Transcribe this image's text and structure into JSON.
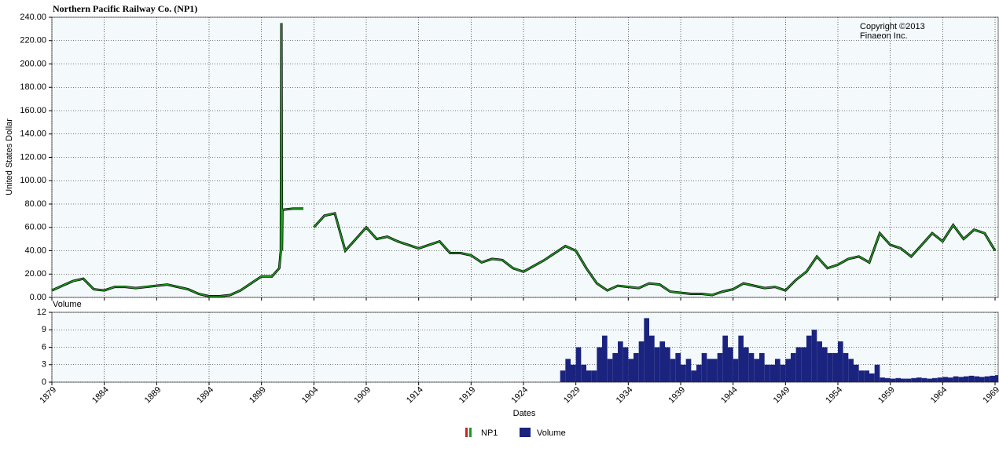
{
  "chart_data": [
    {
      "type": "line",
      "title": "Northern Pacific Railway Co. (NP1)",
      "y_label": "United States Dollar",
      "annotation": [
        "Copyright ©2013",
        "Finaeon Inc."
      ],
      "grid": true,
      "xlim": [
        1879,
        1969.3
      ],
      "xticks": [
        1879,
        1884,
        1889,
        1894,
        1899,
        1904,
        1909,
        1914,
        1919,
        1924,
        1929,
        1934,
        1939,
        1944,
        1949,
        1954,
        1959,
        1964,
        1969
      ],
      "ylim": [
        0,
        240
      ],
      "yticks": [
        {
          "value": 0,
          "label": "0.00"
        },
        {
          "value": 20,
          "label": "20.00"
        },
        {
          "value": 40,
          "label": "40.00"
        },
        {
          "value": 60,
          "label": "60.00"
        },
        {
          "value": 80,
          "label": "80.00"
        },
        {
          "value": 100,
          "label": "100.00"
        },
        {
          "value": 120,
          "label": "120.00"
        },
        {
          "value": 140,
          "label": "140.00"
        },
        {
          "value": 160,
          "label": "160.00"
        },
        {
          "value": 180,
          "label": "180.00"
        },
        {
          "value": 200,
          "label": "200.00"
        },
        {
          "value": 220,
          "label": "220.00"
        },
        {
          "value": 240,
          "label": "240.00"
        }
      ],
      "series": [
        {
          "name": "NP1",
          "color": "#1f9a1f",
          "x": [
            1879,
            1880,
            1881,
            1882,
            1883,
            1884,
            1885,
            1886,
            1887,
            1888,
            1889,
            1890,
            1891,
            1892,
            1893,
            1894,
            1895,
            1896,
            1897,
            1898,
            1899,
            1900,
            1900.7,
            1900.85,
            1900.9,
            1900.95,
            1901,
            1902,
            1903,
            1903.5,
            1904,
            1905,
            1906,
            1907,
            1908,
            1909,
            1910,
            1911,
            1912,
            1913,
            1914,
            1915,
            1916,
            1917,
            1918,
            1919,
            1920,
            1921,
            1922,
            1923,
            1924,
            1925,
            1926,
            1927,
            1928,
            1929,
            1930,
            1931,
            1932,
            1933,
            1934,
            1935,
            1936,
            1937,
            1938,
            1939,
            1940,
            1941,
            1942,
            1943,
            1944,
            1945,
            1946,
            1947,
            1948,
            1949,
            1950,
            1951,
            1952,
            1953,
            1954,
            1955,
            1956,
            1957,
            1958,
            1959,
            1960,
            1961,
            1962,
            1963,
            1964,
            1965,
            1966,
            1967,
            1968,
            1969
          ],
          "values": [
            6,
            10,
            14,
            16,
            7,
            6,
            9,
            9,
            8,
            9,
            10,
            11,
            9,
            7,
            3,
            1,
            1,
            2,
            6,
            12,
            18,
            18,
            25,
            40,
            235,
            40,
            75,
            76,
            76,
            null,
            60,
            70,
            72,
            40,
            50,
            60,
            50,
            52,
            48,
            45,
            42,
            45,
            48,
            38,
            38,
            36,
            30,
            33,
            32,
            25,
            22,
            27,
            32,
            38,
            44,
            40,
            25,
            12,
            6,
            10,
            9,
            8,
            12,
            11,
            5,
            4,
            3,
            3,
            2,
            5,
            7,
            12,
            10,
            8,
            9,
            6,
            15,
            22,
            35,
            25,
            28,
            33,
            35,
            30,
            55,
            45,
            42,
            35,
            45,
            55,
            48,
            62,
            50,
            58,
            55,
            40
          ]
        }
      ]
    },
    {
      "type": "bar",
      "title": "Volume",
      "x_label": "Dates",
      "grid": true,
      "xlim": [
        1879,
        1969.3
      ],
      "xticks": [
        1879,
        1884,
        1889,
        1894,
        1899,
        1904,
        1909,
        1914,
        1919,
        1924,
        1929,
        1934,
        1939,
        1944,
        1949,
        1954,
        1959,
        1964,
        1969
      ],
      "ylim": [
        0,
        12
      ],
      "yticks": [
        0,
        3,
        6,
        9,
        12
      ],
      "series": [
        {
          "name": "Volume",
          "color": "#1a237e",
          "x": [
            1927.5,
            1928,
            1928.5,
            1929,
            1929.5,
            1930,
            1930.5,
            1931,
            1931.5,
            1932,
            1932.5,
            1933,
            1933.5,
            1934,
            1934.5,
            1935,
            1935.5,
            1936,
            1936.5,
            1937,
            1937.5,
            1938,
            1938.5,
            1939,
            1939.5,
            1940,
            1940.5,
            1941,
            1941.5,
            1942,
            1942.5,
            1943,
            1943.5,
            1944,
            1944.5,
            1945,
            1945.5,
            1946,
            1946.5,
            1947,
            1947.5,
            1948,
            1948.5,
            1949,
            1949.5,
            1950,
            1950.5,
            1951,
            1951.5,
            1952,
            1952.5,
            1953,
            1953.5,
            1954,
            1954.5,
            1955,
            1955.5,
            1956,
            1956.5,
            1957,
            1957.5,
            1958,
            1958.5,
            1959,
            1959.5,
            1960,
            1960.5,
            1961,
            1961.5,
            1962,
            1962.5,
            1963,
            1963.5,
            1964,
            1964.5,
            1965,
            1965.5,
            1966,
            1966.5,
            1967,
            1967.5,
            1968,
            1968.5,
            1969
          ],
          "values": [
            2,
            4,
            3,
            6,
            3,
            2,
            2,
            6,
            8,
            4,
            5,
            7,
            6,
            4,
            5,
            7,
            11,
            8,
            6,
            7,
            6,
            4,
            5,
            3,
            4,
            2,
            3,
            5,
            4,
            4,
            5,
            8,
            6,
            4,
            8,
            6,
            5,
            4,
            5,
            3,
            3,
            4,
            3,
            4,
            5,
            6,
            6,
            8,
            9,
            7,
            6,
            5,
            5,
            7,
            5,
            4,
            3,
            2,
            2,
            1.5,
            3,
            0.8,
            0.7,
            0.6,
            0.7,
            0.6,
            0.6,
            0.7,
            0.8,
            0.7,
            0.6,
            0.7,
            0.8,
            0.9,
            0.8,
            1,
            0.9,
            1,
            1.1,
            1,
            0.9,
            1,
            1.1,
            1.2
          ]
        }
      ]
    }
  ]
}
